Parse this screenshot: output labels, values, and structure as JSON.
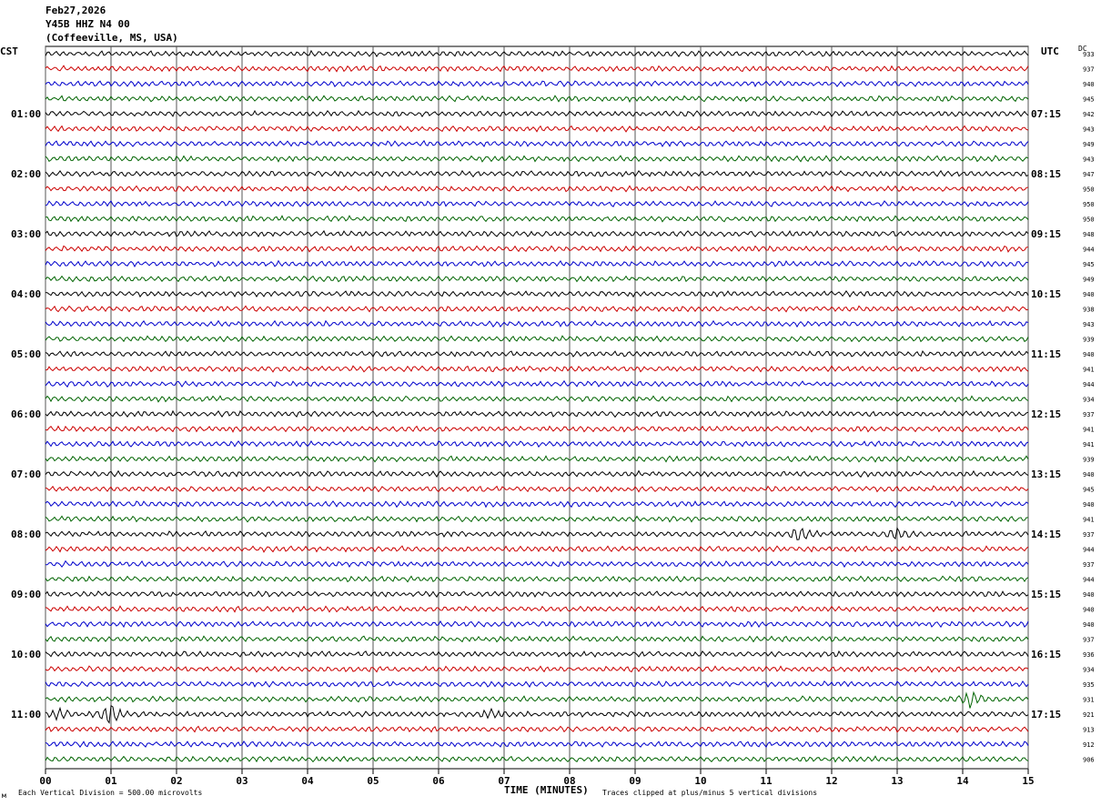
{
  "header": {
    "date": "Feb27,2026",
    "station": "Y45B HHZ N4 00",
    "location": "(Coffeeville, MS, USA)"
  },
  "left_axis_title": "CST",
  "right_axis_title": "UTC",
  "dc_title": "DC",
  "footer": {
    "scale_note": "Each Vertical Division =  500.00 microvolts",
    "xlabel": "TIME (MINUTES)",
    "clip_note": "Traces clipped at plus/minus 5 vertical divisions",
    "corner_mark": "м"
  },
  "colors": {
    "trace_cycle": [
      "#000000",
      "#cc0000",
      "#0000cc",
      "#006400"
    ],
    "grid": "#000000"
  },
  "chart_data": {
    "type": "line",
    "title": "",
    "xlabel": "TIME (MINUTES)",
    "xlim": [
      0,
      15
    ],
    "x_ticks": [
      "00",
      "01",
      "02",
      "03",
      "04",
      "05",
      "06",
      "07",
      "08",
      "09",
      "10",
      "11",
      "12",
      "13",
      "14",
      "15"
    ],
    "traces_per_hour": 4,
    "minutes_per_trace": 15,
    "left_hour_labels": [
      "01:00",
      "02:00",
      "03:00",
      "04:00",
      "05:00",
      "06:00",
      "07:00",
      "08:00",
      "09:00",
      "10:00",
      "11:00"
    ],
    "right_hour_labels": [
      "07:15",
      "08:15",
      "09:15",
      "10:15",
      "11:15",
      "12:15",
      "13:15",
      "14:15",
      "15:15",
      "16:15",
      "17:15"
    ],
    "dc_offsets": [
      933,
      937,
      940,
      945,
      942,
      943,
      949,
      943,
      947,
      950,
      950,
      950,
      948,
      944,
      945,
      949,
      940,
      938,
      943,
      939,
      940,
      941,
      944,
      934,
      937,
      941,
      941,
      939,
      940,
      945,
      940,
      941,
      937,
      944,
      937,
      944,
      940,
      940,
      940,
      937,
      936,
      934,
      935,
      931,
      921,
      913,
      912,
      906
    ],
    "events": [
      {
        "trace": 32,
        "minute": 11.5,
        "amplitude": 7
      },
      {
        "trace": 32,
        "minute": 13.0,
        "amplitude": 6
      },
      {
        "trace": 43,
        "minute": 14.1,
        "amplitude": 8
      },
      {
        "trace": 44,
        "minute": 0.2,
        "amplitude": 6
      },
      {
        "trace": 44,
        "minute": 1.0,
        "amplitude": 11
      },
      {
        "trace": 44,
        "minute": 6.8,
        "amplitude": 5
      }
    ]
  }
}
